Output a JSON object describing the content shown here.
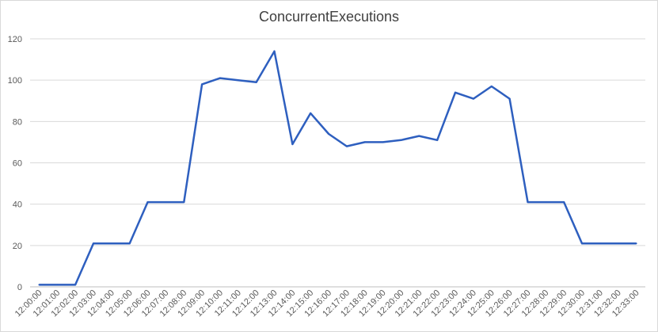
{
  "chart_data": {
    "type": "line",
    "title": "ConcurrentExecutions",
    "xlabel": "",
    "ylabel": "",
    "ylim": [
      0,
      120
    ],
    "yticks": [
      0,
      20,
      40,
      60,
      80,
      100,
      120
    ],
    "grid": true,
    "legend": "none",
    "categories": [
      "12:00:00",
      "12:01:00",
      "12:02:00",
      "12:03:00",
      "12:04:00",
      "12:05:00",
      "12:06:00",
      "12:07:00",
      "12:08:00",
      "12:09:00",
      "12:10:00",
      "12:11:00",
      "12:12:00",
      "12:13:00",
      "12:14:00",
      "12:15:00",
      "12:16:00",
      "12:17:00",
      "12:18:00",
      "12:19:00",
      "12:20:00",
      "12:21:00",
      "12:22:00",
      "12:23:00",
      "12:24:00",
      "12:25:00",
      "12:26:00",
      "12:27:00",
      "12:28:00",
      "12:29:00",
      "12:30:00",
      "12:31:00",
      "12:32:00",
      "12:33:00"
    ],
    "series": [
      {
        "color": "#2e5fbf",
        "values": [
          1,
          1,
          1,
          21,
          21,
          21,
          41,
          41,
          41,
          98,
          101,
          100,
          99,
          114,
          69,
          84,
          74,
          68,
          70,
          70,
          71,
          73,
          71,
          94,
          91,
          97,
          91,
          41,
          41,
          41,
          21,
          21,
          21,
          21
        ]
      }
    ]
  }
}
